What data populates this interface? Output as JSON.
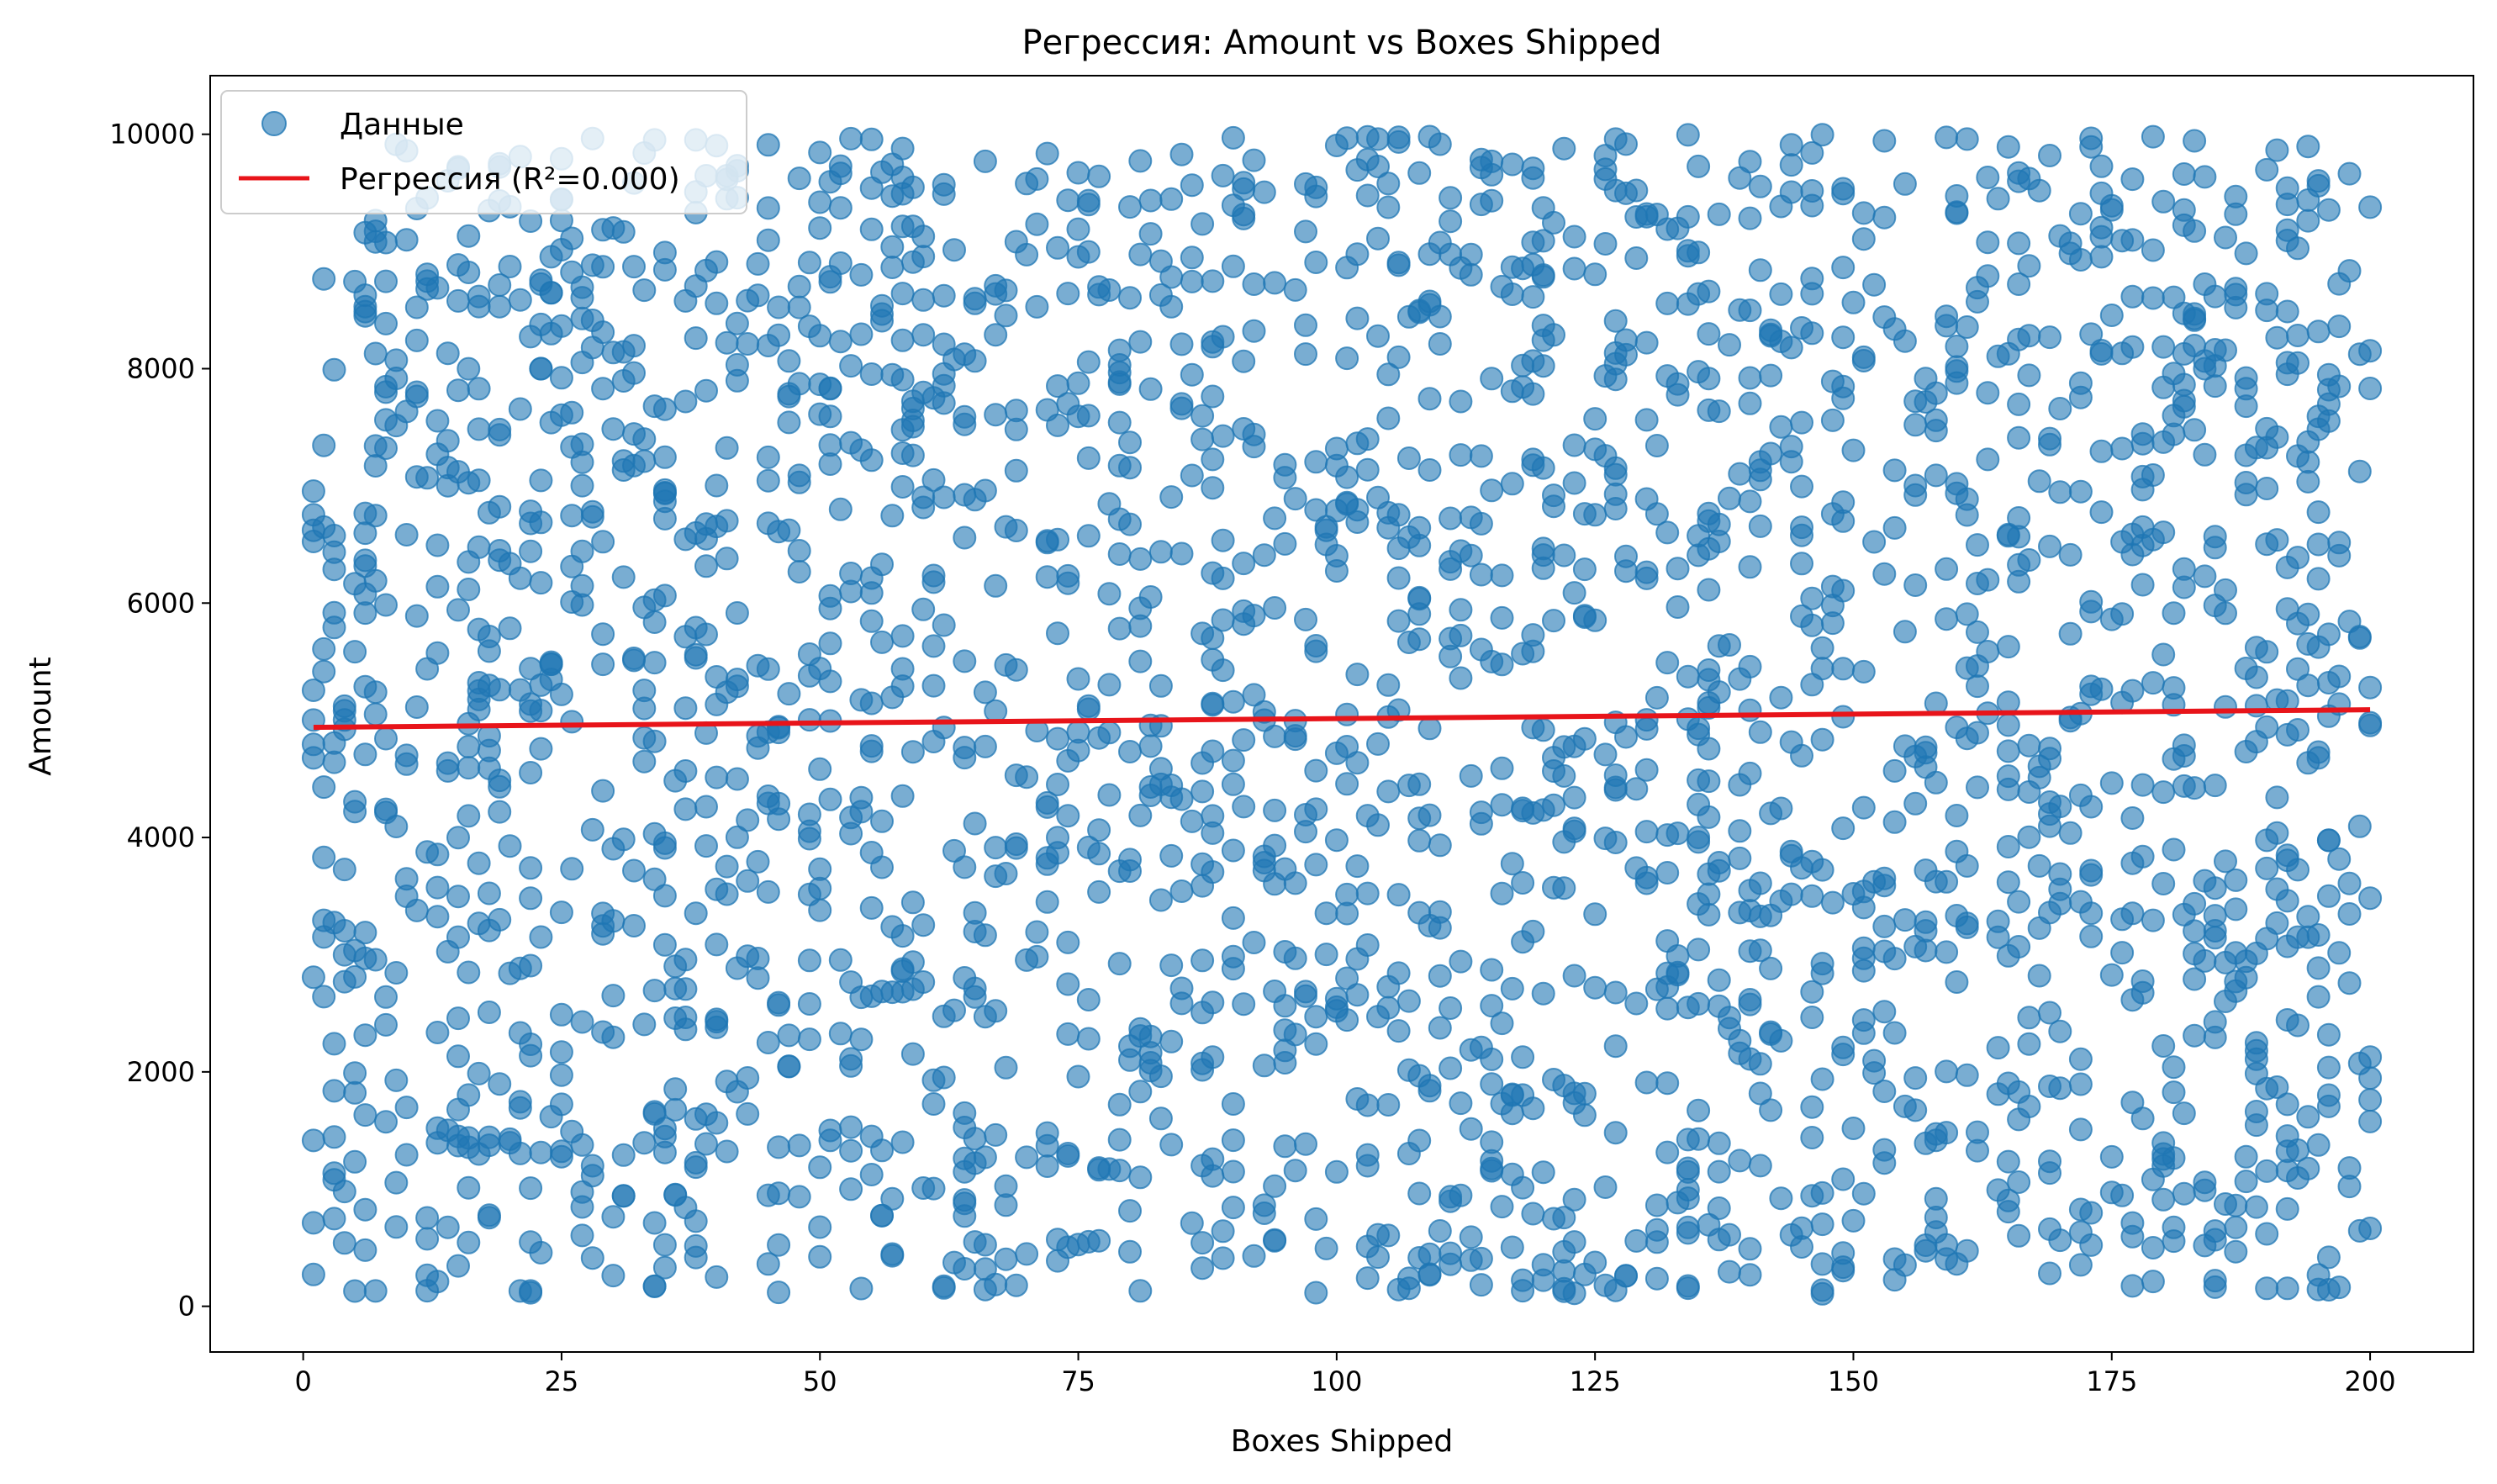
{
  "chart_data": {
    "type": "scatter",
    "title": "Регрессия: Amount vs Boxes Shipped",
    "xlabel": "Boxes Shipped",
    "ylabel": "Amount",
    "xlim": [
      -9,
      210
    ],
    "ylim": [
      -390,
      10500
    ],
    "xticks": [
      0,
      25,
      50,
      75,
      100,
      125,
      150,
      175,
      200
    ],
    "yticks": [
      0,
      2000,
      4000,
      6000,
      8000,
      10000
    ],
    "grid": false,
    "legend_position": "top-left",
    "series": [
      {
        "name": "Данные",
        "kind": "scatter",
        "color": "#1f77b4",
        "alpha": 0.6,
        "n_points": 2400,
        "x_range": [
          1,
          200
        ],
        "y_range": [
          100,
          10000
        ],
        "distribution": "uniform"
      },
      {
        "name": "Регрессия (R²=0.000)",
        "kind": "line",
        "color": "#e8141a",
        "x": [
          1,
          200
        ],
        "y": [
          4940,
          5090
        ]
      }
    ]
  }
}
